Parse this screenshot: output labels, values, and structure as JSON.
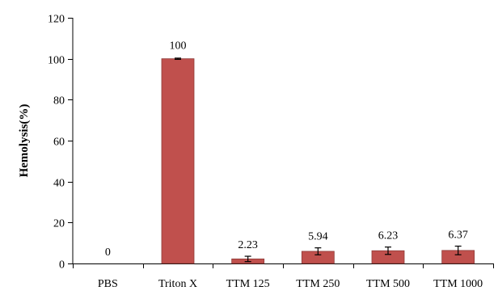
{
  "chart_data": {
    "type": "bar",
    "categories": [
      "PBS",
      "Triton X",
      "TTM 125",
      "TTM 250",
      "TTM 500",
      "TTM 1000"
    ],
    "values": [
      0,
      100,
      2.23,
      5.94,
      6.23,
      6.37
    ],
    "value_labels": [
      "0",
      "100",
      "2.23",
      "5.94",
      "6.23",
      "6.37"
    ],
    "errors": [
      0,
      0.3,
      1.3,
      1.7,
      1.8,
      2.1
    ],
    "title": "",
    "xlabel": "",
    "ylabel": "Hemolysis(%)",
    "ylim": [
      0,
      120
    ],
    "yticks": [
      0,
      20,
      40,
      60,
      80,
      100,
      120
    ],
    "ytick_labels": [
      "0",
      "20",
      "40",
      "60",
      "80",
      "100",
      "120"
    ],
    "grid": false,
    "legend": "none",
    "bar_color": "#c0504d",
    "bar_stroke": "#8e3b38"
  }
}
